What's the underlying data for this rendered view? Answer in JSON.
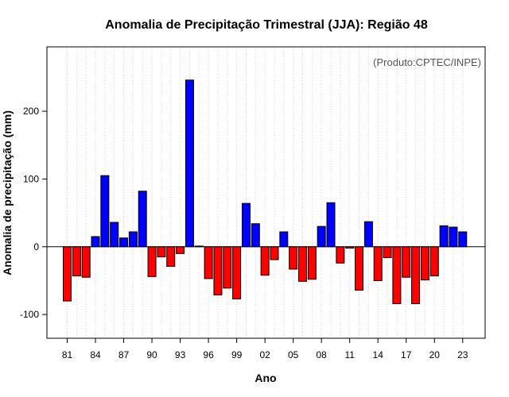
{
  "chart_data": {
    "type": "bar",
    "title": "Anomalia de Precipitação Trimestral (JJA): Região 48",
    "xlabel": "Ano",
    "ylabel": "Anomalia de precipitação (mm)",
    "credit": "(Produto:CPTEC/INPE)",
    "ylim": [
      -135,
      295
    ],
    "y_ticks": [
      -100,
      0,
      100,
      200
    ],
    "x_tick_labels": [
      "81",
      "84",
      "87",
      "90",
      "93",
      "96",
      "99",
      "02",
      "05",
      "08",
      "11",
      "14",
      "17",
      "20",
      "23"
    ],
    "x_tick_years": [
      1981,
      1984,
      1987,
      1990,
      1993,
      1996,
      1999,
      2002,
      2005,
      2008,
      2011,
      2014,
      2017,
      2020,
      2023
    ],
    "grid": "vertical-dotted",
    "colors": {
      "positive": "#0000ff",
      "negative": "#ff0000",
      "zero_line": "#000000",
      "grid": "#d3d3d3"
    },
    "years": [
      1981,
      1982,
      1983,
      1984,
      1985,
      1986,
      1987,
      1988,
      1989,
      1990,
      1991,
      1992,
      1993,
      1994,
      1995,
      1996,
      1997,
      1998,
      1999,
      2000,
      2001,
      2002,
      2003,
      2004,
      2005,
      2006,
      2007,
      2008,
      2009,
      2010,
      2011,
      2012,
      2013,
      2014,
      2015,
      2016,
      2017,
      2018,
      2019,
      2020,
      2021,
      2022,
      2023
    ],
    "values": [
      -80,
      -43,
      -45,
      15,
      105,
      36,
      13,
      22,
      82,
      -44,
      -15,
      -29,
      -10,
      246,
      1,
      -47,
      -71,
      -61,
      -77,
      64,
      34,
      -42,
      -19,
      22,
      -33,
      -51,
      -48,
      30,
      65,
      -24,
      -2,
      -64,
      37,
      -50,
      -16,
      -84,
      -45,
      -84,
      -49,
      -43,
      31,
      29,
      22
    ]
  }
}
